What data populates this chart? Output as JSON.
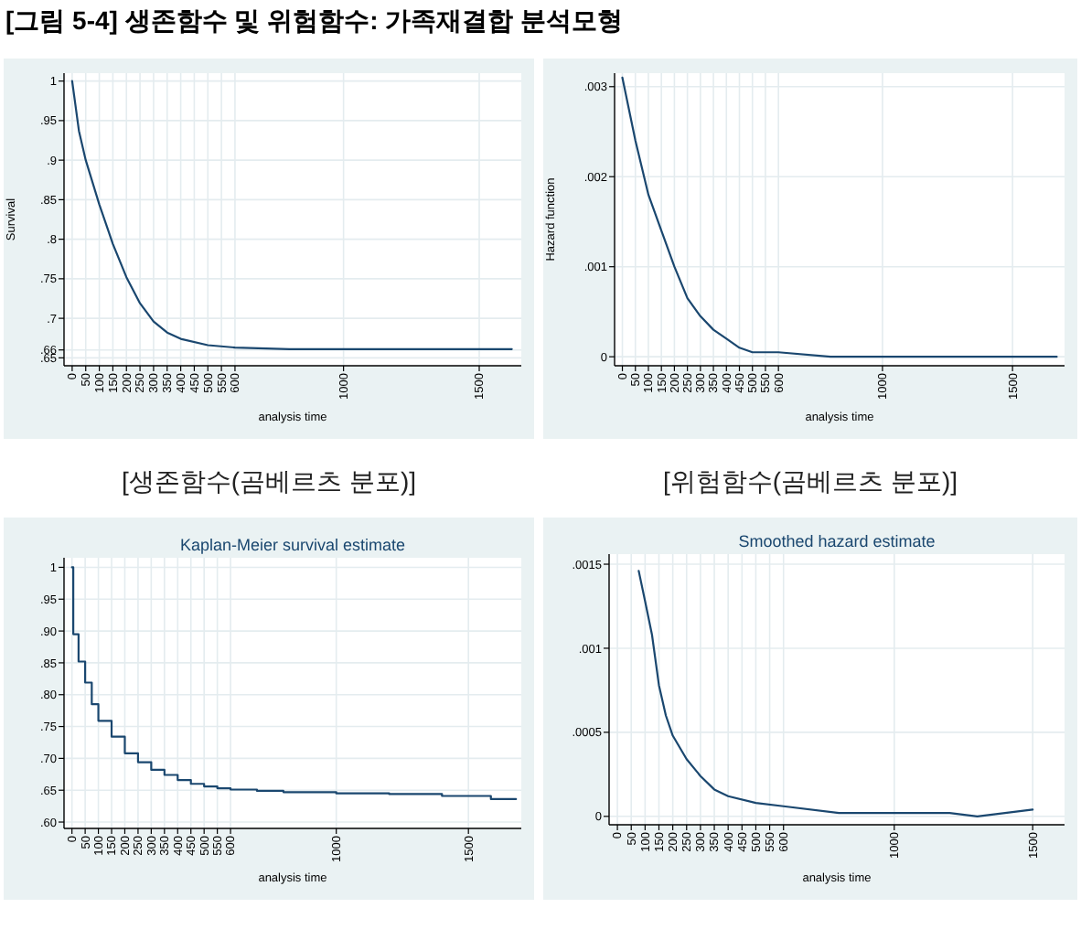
{
  "chart_data": [
    {
      "type": "line",
      "ylabel": "Survival",
      "xlabel": "analysis time",
      "annotations": [
        "[그림 5-4] 생존함수 및 위험함수: 가족재결합 분석모형",
        "[생존함수(곰베르츠 분포)]"
      ],
      "color": "#1a476f",
      "grid": true,
      "x": [
        0,
        25,
        50,
        100,
        150,
        200,
        250,
        300,
        350,
        400,
        500,
        600,
        800,
        1000,
        1620
      ],
      "values": [
        1,
        0.937,
        0.9,
        0.844,
        0.794,
        0.752,
        0.719,
        0.696,
        0.682,
        0.674,
        0.666,
        0.663,
        0.661,
        0.661,
        0.661
      ],
      "xlim": [
        -30,
        1655
      ],
      "ylim": [
        0.64,
        1.01
      ],
      "xticks": [
        0,
        50,
        100,
        150,
        200,
        250,
        300,
        350,
        400,
        450,
        500,
        550,
        600,
        1000,
        1500
      ],
      "yticks": [
        {
          "value": 0.65,
          "label": ".65"
        },
        {
          "value": 0.66,
          "label": ".66"
        },
        {
          "value": 0.7,
          "label": ".7"
        },
        {
          "value": 0.75,
          "label": ".75"
        },
        {
          "value": 0.8,
          "label": ".8"
        },
        {
          "value": 0.85,
          "label": ".85"
        },
        {
          "value": 0.9,
          "label": ".9"
        },
        {
          "value": 0.95,
          "label": ".95"
        },
        {
          "value": 1,
          "label": "1"
        }
      ]
    },
    {
      "type": "line",
      "ylabel": "Hazard function",
      "xlabel": "analysis time",
      "annotations": [
        "[위험함수(곰베르츠 분포)]"
      ],
      "color": "#1a476f",
      "grid": true,
      "x": [
        0,
        50,
        100,
        150,
        200,
        250,
        300,
        350,
        400,
        450,
        500,
        600,
        800,
        1000,
        1670
      ],
      "values": [
        0.0031,
        0.0024,
        0.0018,
        0.0014,
        0.001,
        0.00065,
        0.00045,
        0.0003,
        0.0002,
        0.0001,
        5e-05,
        5e-05,
        0,
        0,
        0
      ],
      "xlim": [
        -30,
        1700
      ],
      "ylim": [
        -0.0001,
        0.00315
      ],
      "xticks": [
        0,
        50,
        100,
        150,
        200,
        250,
        300,
        350,
        400,
        450,
        500,
        550,
        600,
        1000,
        1500
      ],
      "yticks": [
        {
          "value": 0,
          "label": "0"
        },
        {
          "value": 0.001,
          "label": ".001"
        },
        {
          "value": 0.002,
          "label": ".002"
        },
        {
          "value": 0.003,
          "label": ".003"
        }
      ]
    },
    {
      "type": "step",
      "title": "Kaplan-Meier survival estimate",
      "xlabel": "analysis time",
      "color": "#1a476f",
      "grid": true,
      "x": [
        0,
        5,
        25,
        50,
        75,
        100,
        150,
        200,
        250,
        300,
        350,
        400,
        450,
        500,
        550,
        600,
        700,
        800,
        1000,
        1200,
        1400,
        1585,
        1680
      ],
      "values": [
        1,
        0.895,
        0.852,
        0.819,
        0.785,
        0.759,
        0.734,
        0.708,
        0.694,
        0.682,
        0.674,
        0.666,
        0.66,
        0.656,
        0.653,
        0.651,
        0.649,
        0.647,
        0.645,
        0.644,
        0.641,
        0.636,
        0.636
      ],
      "xlim": [
        -30,
        1700
      ],
      "ylim": [
        0.59,
        1.015
      ],
      "xticks": [
        0,
        50,
        100,
        150,
        200,
        250,
        300,
        350,
        400,
        450,
        500,
        550,
        600,
        1000,
        1500
      ],
      "yticks": [
        {
          "value": 0.6,
          "label": ".60"
        },
        {
          "value": 0.65,
          "label": ".65"
        },
        {
          "value": 0.7,
          "label": ".70"
        },
        {
          "value": 0.75,
          "label": ".75"
        },
        {
          "value": 0.8,
          "label": ".80"
        },
        {
          "value": 0.85,
          "label": ".85"
        },
        {
          "value": 0.9,
          "label": ".90"
        },
        {
          "value": 0.95,
          "label": ".95"
        },
        {
          "value": 1,
          "label": "1"
        }
      ]
    },
    {
      "type": "line",
      "title": "Smoothed hazard estimate",
      "xlabel": "analysis time",
      "color": "#1a476f",
      "grid": true,
      "x": [
        77,
        100,
        125,
        150,
        175,
        200,
        250,
        300,
        350,
        400,
        500,
        600,
        800,
        1000,
        1200,
        1300,
        1400,
        1500
      ],
      "values": [
        0.00146,
        0.00128,
        0.00108,
        0.00078,
        0.0006,
        0.00048,
        0.00034,
        0.00024,
        0.00016,
        0.00012,
        8e-05,
        6e-05,
        2e-05,
        2e-05,
        2e-05,
        0,
        2e-05,
        4e-05
      ],
      "xlim": [
        -30,
        1615
      ],
      "ylim": [
        -5e-05,
        0.00156
      ],
      "xticks": [
        0,
        50,
        100,
        150,
        200,
        250,
        300,
        350,
        400,
        450,
        500,
        550,
        600,
        1000,
        1500
      ],
      "yticks": [
        {
          "value": 0,
          "label": "0"
        },
        {
          "value": 0.0005,
          "label": ".0005"
        },
        {
          "value": 0.001,
          "label": ".001"
        },
        {
          "value": 0.0015,
          "label": ".0015"
        }
      ]
    }
  ]
}
